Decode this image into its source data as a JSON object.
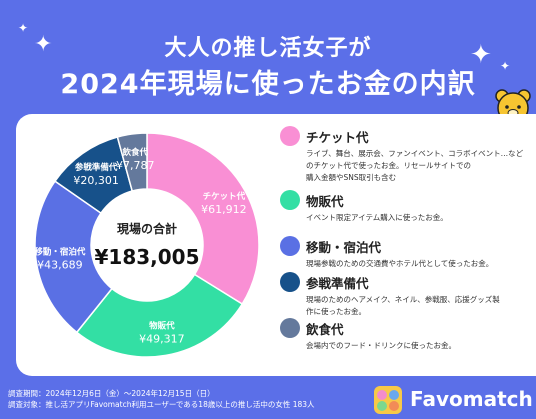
{
  "title": {
    "line1": "大人の推し活女子が",
    "line2": "2024年現場に使ったお金の内訳"
  },
  "icons": [
    "sparkle-icon",
    "bear-lightstick-icon",
    "favomatch-logo-icon"
  ],
  "colors": {
    "background": "#5b6fe8",
    "ticket": "#f98fd4",
    "merch": "#33dfa4",
    "travel": "#5a70e4",
    "preparation": "#17518a",
    "food": "#64799c"
  },
  "chart_data": {
    "type": "pie",
    "donut": true,
    "center_label": "現場の合計",
    "center_value": "¥183,005",
    "total": 183005,
    "categories": [
      "チケット代",
      "物販代",
      "移動・宿泊代",
      "参戦準備代",
      "飲食代"
    ],
    "values": [
      61912,
      49317,
      43689,
      20301,
      7787
    ],
    "value_labels": [
      "¥61,912",
      "¥49,317",
      "¥43,689",
      "¥20,301",
      "¥7,787"
    ],
    "colors": [
      "#f98fd4",
      "#33dfa4",
      "#5a70e4",
      "#17518a",
      "#64799c"
    ]
  },
  "legend": [
    {
      "name": "チケット代",
      "color": "#f98fd4",
      "desc": [
        "ライブ、舞台、展示会、ファンイベント、コラボイベント…などのチケット代で使ったお金。リセールサイトでの",
        "購入金額やSNS取引も含む"
      ]
    },
    {
      "name": "物販代",
      "color": "#33dfa4",
      "desc": [
        "イベント限定アイテム購入に使ったお金。"
      ]
    },
    {
      "name": "移動・宿泊代",
      "color": "#5a70e4",
      "desc": [
        "現場参戦のための交通費やホテル代として使ったお金。"
      ]
    },
    {
      "name": "参戦準備代",
      "color": "#17518a",
      "desc": [
        "現場のためのヘアメイク、ネイル、参戦服、応援グッズ製",
        "作に使ったお金。"
      ]
    },
    {
      "name": "飲食代",
      "color": "#64799c",
      "desc": [
        "会場内でのフード・ドリンクに使ったお金。"
      ]
    }
  ],
  "footer": {
    "period": "調査期間：2024年12月6日（金）〜2024年12月15日（日）",
    "target": "調査対象：推し活アプリFavomatch利用ユーザーである18歳以上の推し活中の女性 183人"
  },
  "brand": {
    "name": "Favomatch"
  }
}
